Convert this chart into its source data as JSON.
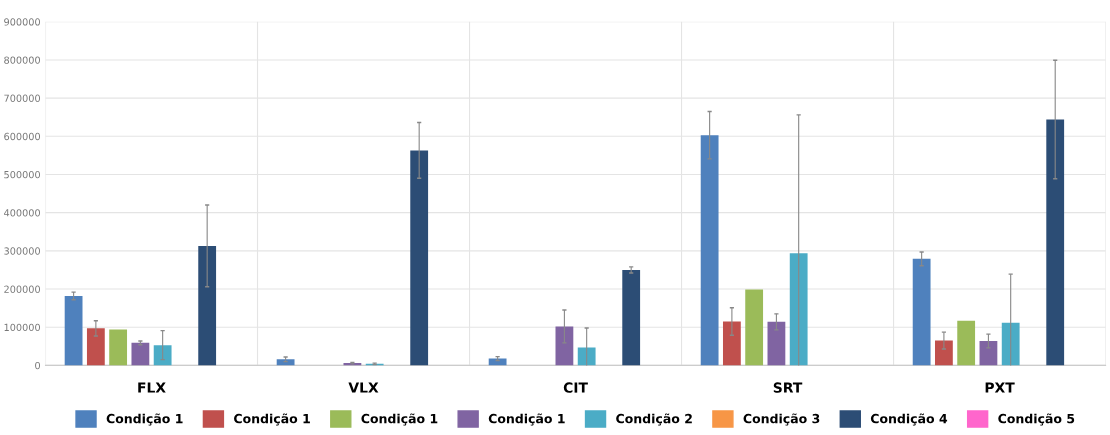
{
  "chart_data": {
    "type": "bar",
    "categories": [
      "FLX",
      "VLX",
      "CIT",
      "SRT",
      "PXT"
    ],
    "series": [
      {
        "name": "Condição 1",
        "color": "#4f81bd",
        "values": [
          182000,
          16000,
          18000,
          603000,
          279000
        ],
        "errors": [
          10000,
          6000,
          5000,
          62000,
          18000
        ]
      },
      {
        "name": "Condição 1",
        "color": "#c0504d",
        "values": [
          97000,
          null,
          null,
          115000,
          65000
        ],
        "errors": [
          20000,
          null,
          null,
          36000,
          22000
        ]
      },
      {
        "name": "Condição 1",
        "color": "#9bbb59",
        "values": [
          94000,
          null,
          null,
          199000,
          117000
        ]
      },
      {
        "name": "Condição 1",
        "color": "#8064a2",
        "values": [
          59000,
          6000,
          102000,
          114000,
          64000
        ],
        "errors": [
          5000,
          2000,
          43000,
          21000,
          18000
        ]
      },
      {
        "name": "Condição 2",
        "color": "#4bacc6",
        "values": [
          53000,
          4000,
          47000,
          294000,
          112000
        ],
        "errors": [
          38000,
          2000,
          51000,
          362000,
          127000
        ]
      },
      {
        "name": "Condição 3",
        "color": "#f79646",
        "values": [
          null,
          null,
          null,
          null,
          null
        ]
      },
      {
        "name": "Condição 4",
        "color": "#2c4d75",
        "values": [
          313000,
          563000,
          250000,
          null,
          644000
        ],
        "errors": [
          107000,
          73000,
          8000,
          null,
          155000
        ]
      },
      {
        "name": "Condição 5",
        "color": "#ff66cc",
        "values": [
          null,
          null,
          null,
          null,
          null
        ]
      }
    ],
    "ylim": [
      0,
      900000
    ],
    "yticks": [
      0,
      100000,
      200000,
      300000,
      400000,
      500000,
      600000,
      700000,
      800000,
      900000
    ],
    "grid": true,
    "legend": "bottom"
  }
}
